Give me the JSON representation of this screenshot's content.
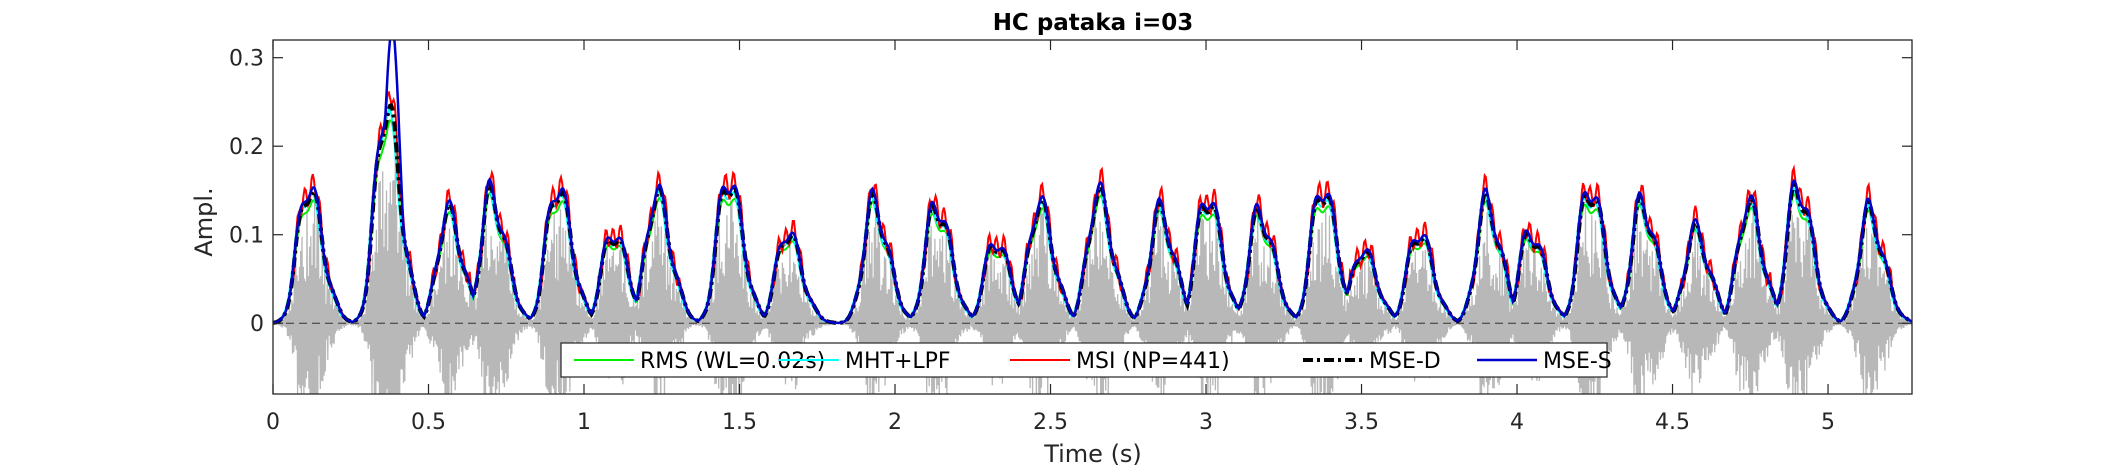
{
  "chart_data": {
    "type": "line",
    "title": "HC pataka i=03",
    "xlabel": "Time (s)",
    "ylabel": "Ampl.",
    "xlim": [
      0,
      5.27
    ],
    "ylim": [
      -0.08,
      0.32
    ],
    "x_ticks": [
      0,
      0.5,
      1,
      1.5,
      2,
      2.5,
      3,
      3.5,
      4,
      4.5,
      5
    ],
    "x_tick_labels": [
      "0",
      "0.5",
      "1",
      "1.5",
      "2",
      "2.5",
      "3",
      "3.5",
      "4",
      "4.5",
      "5"
    ],
    "y_ticks": [
      0,
      0.1,
      0.2,
      0.3
    ],
    "y_tick_labels": [
      "0",
      "0.1",
      "0.2",
      "0.3"
    ],
    "zero_line": {
      "y": 0,
      "style": "dashed"
    },
    "grid": false,
    "legend_position": "bottom-center",
    "waveform": {
      "color": "#b8b8b8"
    },
    "burst_events": [
      {
        "t": 0.11,
        "peak": 0.15
      },
      {
        "t": 0.36,
        "peak": 0.24
      },
      {
        "t": 0.56,
        "peak": 0.12
      },
      {
        "t": 0.7,
        "peak": 0.14
      },
      {
        "t": 0.91,
        "peak": 0.15
      },
      {
        "t": 1.09,
        "peak": 0.1
      },
      {
        "t": 1.23,
        "peak": 0.14
      },
      {
        "t": 1.46,
        "peak": 0.16
      },
      {
        "t": 1.65,
        "peak": 0.1
      },
      {
        "t": 1.93,
        "peak": 0.13
      },
      {
        "t": 2.13,
        "peak": 0.13
      },
      {
        "t": 2.32,
        "peak": 0.09
      },
      {
        "t": 2.46,
        "peak": 0.13
      },
      {
        "t": 2.65,
        "peak": 0.14
      },
      {
        "t": 2.85,
        "peak": 0.12
      },
      {
        "t": 3.0,
        "peak": 0.14
      },
      {
        "t": 3.17,
        "peak": 0.12
      },
      {
        "t": 3.37,
        "peak": 0.15
      },
      {
        "t": 3.5,
        "peak": 0.08
      },
      {
        "t": 3.68,
        "peak": 0.1
      },
      {
        "t": 3.9,
        "peak": 0.13
      },
      {
        "t": 4.04,
        "peak": 0.1
      },
      {
        "t": 4.23,
        "peak": 0.15
      },
      {
        "t": 4.4,
        "peak": 0.13
      },
      {
        "t": 4.57,
        "peak": 0.1
      },
      {
        "t": 4.74,
        "peak": 0.13
      },
      {
        "t": 4.9,
        "peak": 0.15
      },
      {
        "t": 5.13,
        "peak": 0.12
      }
    ],
    "series": [
      {
        "name": "RMS (WL=0.02s)",
        "color": "#00ee00",
        "dash": "solid",
        "width": 2,
        "scale": 0.95,
        "shift": 0.0
      },
      {
        "name": "MHT+LPF",
        "color": "#00ffff",
        "dash": "solid",
        "width": 2,
        "scale": 1.0,
        "shift": 0.012
      },
      {
        "name": "MSI (NP=441)",
        "color": "#ff0000",
        "dash": "solid",
        "width": 2,
        "scale": 1.08,
        "shift": -0.004
      },
      {
        "name": "MSE-D",
        "color": "#000000",
        "dash": "dashdot",
        "width": 4,
        "scale": 1.02,
        "shift": -0.002
      },
      {
        "name": "MSE-S",
        "color": "#0000cc",
        "dash": "solid",
        "width": 2.5,
        "scale": 1.05,
        "shift": 0.0
      }
    ]
  }
}
